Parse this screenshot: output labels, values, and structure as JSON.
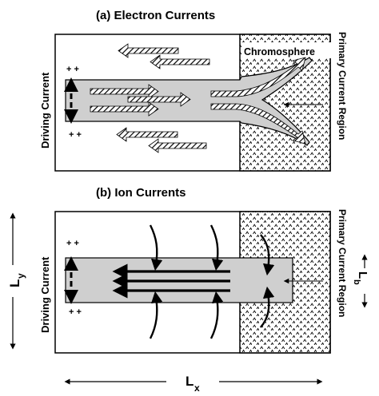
{
  "panel_a": {
    "title": "(a)  Electron Currents",
    "left_label": "Driving   Current",
    "right_label": "Primary   Current   Region",
    "region_label": "Chromosphere",
    "plus": "+ +"
  },
  "panel_b": {
    "title": "(b)  Ion Currents",
    "left_label": "Driving   Current",
    "right_label": "Primary   Current   Region",
    "plus": "+ +"
  },
  "dims": {
    "ly_main": "L",
    "ly_sub": "y",
    "lx_main": "L",
    "lx_sub": "x",
    "lb_main": "L",
    "lb_sub": "b"
  },
  "colors": {
    "channel": "#cfcfcf",
    "stroke": "#000000",
    "paper": "#ffffff"
  }
}
